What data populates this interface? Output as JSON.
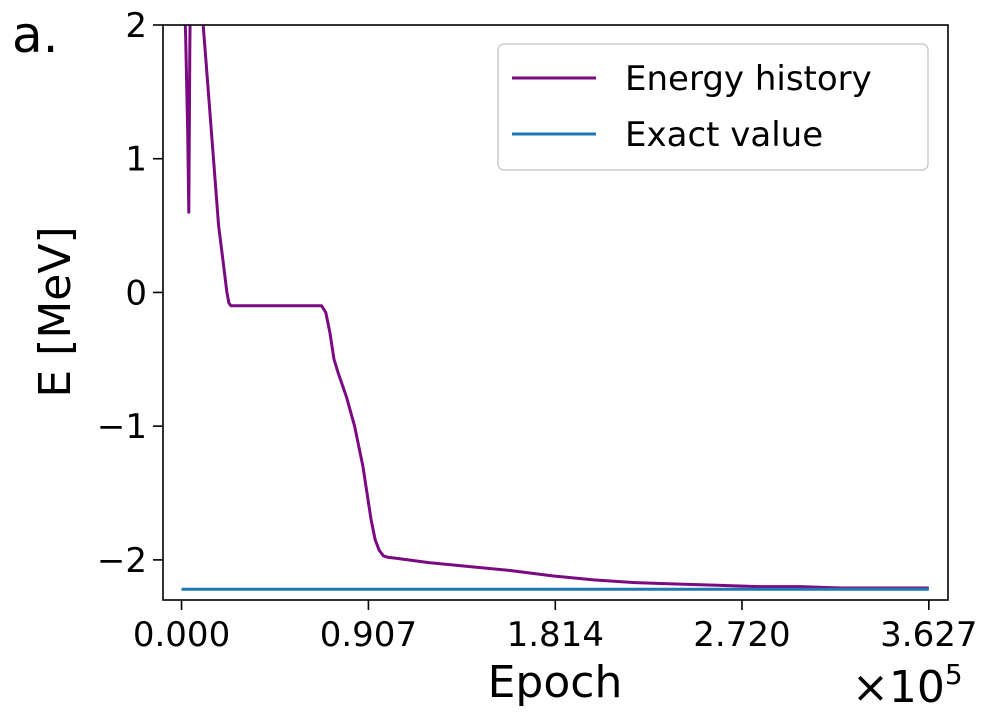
{
  "panel_label": "a.",
  "chart_data": {
    "type": "line",
    "xlabel": "Epoch",
    "ylabel": "E [MeV]",
    "x_multiplier": "×10",
    "x_multiplier_exp": "5",
    "xlim": [
      -0.09,
      3.72
    ],
    "ylim": [
      -2.3,
      2.0
    ],
    "x_ticks": [
      0.0,
      0.907,
      1.814,
      2.72,
      3.627
    ],
    "x_tick_labels": [
      "0.000",
      "0.907",
      "1.814",
      "2.720",
      "3.627"
    ],
    "y_ticks": [
      2,
      1,
      0,
      -1,
      -2
    ],
    "y_tick_labels": [
      "2",
      "1",
      "0",
      "−1",
      "−2"
    ],
    "grid": false,
    "legend_position": "top-right",
    "series": [
      {
        "name": "Energy history",
        "color": "#7b0a82",
        "x": [
          0.0,
          0.02,
          0.03,
          0.035,
          0.04,
          0.045,
          0.05,
          0.06,
          0.08,
          0.1,
          0.12,
          0.14,
          0.16,
          0.18,
          0.2,
          0.22,
          0.23,
          0.24,
          0.3,
          0.4,
          0.5,
          0.6,
          0.68,
          0.7,
          0.72,
          0.74,
          0.76,
          0.8,
          0.84,
          0.88,
          0.9,
          0.92,
          0.94,
          0.96,
          0.98,
          1.0,
          1.05,
          1.1,
          1.2,
          1.4,
          1.6,
          1.8,
          2.0,
          2.2,
          2.4,
          2.6,
          2.8,
          3.0,
          3.2,
          3.4,
          3.627
        ],
        "y": [
          3.0,
          1.9,
          1.2,
          0.6,
          1.8,
          2.6,
          2.2,
          2.4,
          2.3,
          2.1,
          1.7,
          1.3,
          0.9,
          0.5,
          0.25,
          0.0,
          -0.08,
          -0.1,
          -0.1,
          -0.1,
          -0.1,
          -0.1,
          -0.1,
          -0.15,
          -0.3,
          -0.5,
          -0.6,
          -0.78,
          -1.0,
          -1.3,
          -1.5,
          -1.7,
          -1.85,
          -1.93,
          -1.97,
          -1.98,
          -1.99,
          -2.0,
          -2.02,
          -2.05,
          -2.08,
          -2.12,
          -2.15,
          -2.17,
          -2.18,
          -2.19,
          -2.2,
          -2.2,
          -2.21,
          -2.21,
          -2.21
        ]
      },
      {
        "name": "Exact value",
        "color": "#1f77b4",
        "x": [
          0.0,
          3.627
        ],
        "y": [
          -2.22,
          -2.22
        ]
      }
    ]
  }
}
